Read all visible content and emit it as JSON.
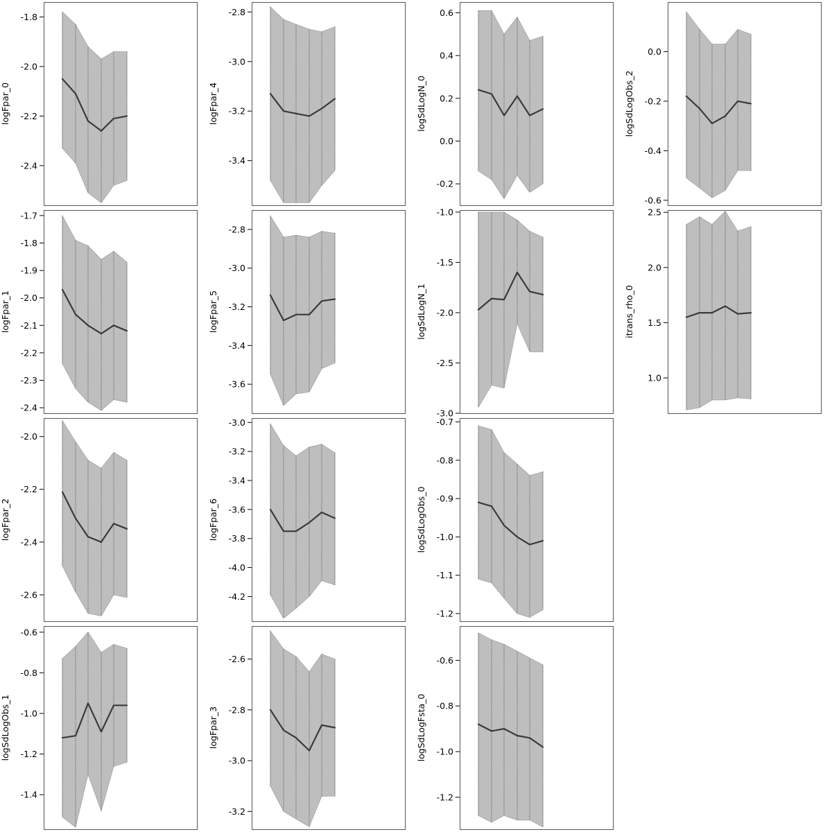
{
  "style": {
    "band_fill": "#bebebe",
    "band_edge": "#a3a3a3",
    "line_color": "#3a3a3a",
    "vline_color": "#5a5a5a",
    "frame_color": "#555555"
  },
  "chart_data": [
    {
      "type": "area",
      "ylabel": "logFpar_0",
      "ylim": [
        -2.56,
        -1.74
      ],
      "yticks": [
        -1.8,
        -2.0,
        -2.2,
        -2.4
      ],
      "ytick_labels": [
        "-1.8",
        "-2.0",
        "-2.2",
        "-2.4"
      ],
      "x": [
        1,
        2,
        3,
        4,
        5,
        6
      ],
      "mean": [
        -2.05,
        -2.11,
        -2.22,
        -2.26,
        -2.21,
        -2.2
      ],
      "upper": [
        -1.78,
        -1.83,
        -1.92,
        -1.97,
        -1.94,
        -1.94
      ],
      "lower": [
        -2.33,
        -2.39,
        -2.51,
        -2.55,
        -2.48,
        -2.46
      ]
    },
    {
      "type": "area",
      "ylabel": "logFpar_4",
      "ylim": [
        -3.58,
        -2.76
      ],
      "yticks": [
        -2.8,
        -3.0,
        -3.2,
        -3.4
      ],
      "ytick_labels": [
        "-2.8",
        "-3.0",
        "-3.2",
        "-3.4"
      ],
      "x": [
        1,
        2,
        3,
        4,
        5,
        6
      ],
      "mean": [
        -3.13,
        -3.2,
        -3.21,
        -3.22,
        -3.19,
        -3.15
      ],
      "upper": [
        -2.78,
        -2.83,
        -2.85,
        -2.87,
        -2.88,
        -2.86
      ],
      "lower": [
        -3.48,
        -3.57,
        -3.57,
        -3.57,
        -3.5,
        -3.44
      ]
    },
    {
      "type": "area",
      "ylabel": "logSdLogN_0",
      "ylim": [
        -0.3,
        0.65
      ],
      "yticks": [
        0.6,
        0.4,
        0.2,
        0.0,
        -0.2
      ],
      "ytick_labels": [
        "0.6",
        "0.4",
        "0.2",
        "0.0",
        "-0.2"
      ],
      "x": [
        1,
        2,
        3,
        4,
        5,
        6
      ],
      "mean": [
        0.24,
        0.22,
        0.12,
        0.21,
        0.12,
        0.15
      ],
      "upper": [
        0.61,
        0.61,
        0.5,
        0.58,
        0.47,
        0.49
      ],
      "lower": [
        -0.14,
        -0.18,
        -0.27,
        -0.16,
        -0.24,
        -0.2
      ]
    },
    {
      "type": "area",
      "ylabel": "logSdLogObs_2",
      "ylim": [
        -0.62,
        0.2
      ],
      "yticks": [
        0.0,
        -0.2,
        -0.4,
        -0.6
      ],
      "ytick_labels": [
        "0.0",
        "-0.2",
        "-0.4",
        "-0.6"
      ],
      "x": [
        1,
        2,
        3,
        4,
        5,
        6
      ],
      "mean": [
        -0.18,
        -0.23,
        -0.29,
        -0.26,
        -0.2,
        -0.21
      ],
      "upper": [
        0.16,
        0.09,
        0.03,
        0.03,
        0.09,
        0.07
      ],
      "lower": [
        -0.51,
        -0.55,
        -0.59,
        -0.56,
        -0.48,
        -0.48
      ]
    },
    {
      "type": "area",
      "ylabel": "logFpar_1",
      "ylim": [
        -2.42,
        -1.68
      ],
      "yticks": [
        -1.7,
        -1.8,
        -1.9,
        -2.0,
        -2.1,
        -2.2,
        -2.3,
        -2.4
      ],
      "ytick_labels": [
        "-1.7",
        "-1.8",
        "-1.9",
        "-2.0",
        "-2.1",
        "-2.2",
        "-2.3",
        "-2.4"
      ],
      "x": [
        1,
        2,
        3,
        4,
        5,
        6
      ],
      "mean": [
        -1.97,
        -2.06,
        -2.1,
        -2.13,
        -2.1,
        -2.12
      ],
      "upper": [
        -1.7,
        -1.79,
        -1.81,
        -1.86,
        -1.83,
        -1.87
      ],
      "lower": [
        -2.24,
        -2.33,
        -2.38,
        -2.41,
        -2.37,
        -2.38
      ]
    },
    {
      "type": "area",
      "ylabel": "logFpar_5",
      "ylim": [
        -3.75,
        -2.7
      ],
      "yticks": [
        -2.8,
        -3.0,
        -3.2,
        -3.4,
        -3.6
      ],
      "ytick_labels": [
        "-2.8",
        "-3.0",
        "-3.2",
        "-3.4",
        "-3.6"
      ],
      "x": [
        1,
        2,
        3,
        4,
        5,
        6
      ],
      "mean": [
        -3.14,
        -3.27,
        -3.24,
        -3.24,
        -3.17,
        -3.16
      ],
      "upper": [
        -2.73,
        -2.84,
        -2.83,
        -2.84,
        -2.81,
        -2.82
      ],
      "lower": [
        -3.55,
        -3.71,
        -3.65,
        -3.64,
        -3.52,
        -3.49
      ]
    },
    {
      "type": "area",
      "ylabel": "logSdLogN_1",
      "ylim": [
        -3.0,
        -0.98
      ],
      "yticks": [
        -1.0,
        -1.5,
        -2.0,
        -2.5,
        -3.0
      ],
      "ytick_labels": [
        "-1.0",
        "-1.5",
        "-2.0",
        "-2.5",
        "-3.0"
      ],
      "x": [
        1,
        2,
        3,
        4,
        5,
        6
      ],
      "mean": [
        -1.97,
        -1.86,
        -1.87,
        -1.6,
        -1.79,
        -1.82
      ],
      "upper": [
        -1.0,
        -1.0,
        -1.0,
        -1.08,
        -1.19,
        -1.25
      ],
      "lower": [
        -2.94,
        -2.72,
        -2.75,
        -2.11,
        -2.39,
        -2.39
      ]
    },
    {
      "type": "area",
      "ylabel": "itrans_rho_0",
      "ylim": [
        0.68,
        2.52
      ],
      "yticks": [
        2.5,
        2.0,
        1.5,
        1.0
      ],
      "ytick_labels": [
        "2.5",
        "2.0",
        "1.5",
        "1.0"
      ],
      "x": [
        1,
        2,
        3,
        4,
        5,
        6
      ],
      "mean": [
        1.55,
        1.59,
        1.59,
        1.65,
        1.58,
        1.59
      ],
      "upper": [
        2.39,
        2.46,
        2.39,
        2.51,
        2.33,
        2.37
      ],
      "lower": [
        0.71,
        0.73,
        0.8,
        0.8,
        0.82,
        0.81
      ]
    },
    {
      "type": "area",
      "ylabel": "logFpar_2",
      "ylim": [
        -2.7,
        -1.93
      ],
      "yticks": [
        -2.0,
        -2.2,
        -2.4,
        -2.6
      ],
      "ytick_labels": [
        "-2.0",
        "-2.2",
        "-2.4",
        "-2.6"
      ],
      "x": [
        1,
        2,
        3,
        4,
        5,
        6
      ],
      "mean": [
        -2.21,
        -2.31,
        -2.38,
        -2.4,
        -2.33,
        -2.35
      ],
      "upper": [
        -1.94,
        -2.02,
        -2.09,
        -2.12,
        -2.06,
        -2.09
      ],
      "lower": [
        -2.49,
        -2.59,
        -2.67,
        -2.68,
        -2.6,
        -2.61
      ]
    },
    {
      "type": "area",
      "ylabel": "logFpar_6",
      "ylim": [
        -4.37,
        -2.97
      ],
      "yticks": [
        -3.0,
        -3.2,
        -3.4,
        -3.6,
        -3.8,
        -4.0,
        -4.2
      ],
      "ytick_labels": [
        "-3.0",
        "-3.2",
        "-3.4",
        "-3.6",
        "-3.8",
        "-4.0",
        "-4.2"
      ],
      "x": [
        1,
        2,
        3,
        4,
        5,
        6
      ],
      "mean": [
        -3.6,
        -3.75,
        -3.75,
        -3.69,
        -3.62,
        -3.66
      ],
      "upper": [
        -3.01,
        -3.16,
        -3.23,
        -3.17,
        -3.15,
        -3.21
      ],
      "lower": [
        -4.19,
        -4.35,
        -4.28,
        -4.2,
        -4.09,
        -4.12
      ]
    },
    {
      "type": "area",
      "ylabel": "logSdLogObs_0",
      "ylim": [
        -1.22,
        -0.69
      ],
      "yticks": [
        -0.7,
        -0.8,
        -0.9,
        -1.0,
        -1.1,
        -1.2
      ],
      "ytick_labels": [
        "-0.7",
        "-0.8",
        "-0.9",
        "-1.0",
        "-1.1",
        "-1.2"
      ],
      "x": [
        1,
        2,
        3,
        4,
        5,
        6
      ],
      "mean": [
        -0.91,
        -0.92,
        -0.97,
        -1.0,
        -1.02,
        -1.01
      ],
      "upper": [
        -0.71,
        -0.72,
        -0.78,
        -0.81,
        -0.84,
        -0.83
      ],
      "lower": [
        -1.11,
        -1.12,
        -1.16,
        -1.2,
        -1.21,
        -1.19
      ]
    },
    {
      "type": "area",
      "ylabel": "logSdLogObs_1",
      "ylim": [
        -1.57,
        -0.57
      ],
      "yticks": [
        -0.6,
        -0.8,
        -1.0,
        -1.2,
        -1.4
      ],
      "ytick_labels": [
        "-0.6",
        "-0.8",
        "-1.0",
        "-1.2",
        "-1.4"
      ],
      "x": [
        1,
        2,
        3,
        4,
        5,
        6
      ],
      "mean": [
        -1.12,
        -1.11,
        -0.95,
        -1.09,
        -0.96,
        -0.96
      ],
      "upper": [
        -0.73,
        -0.67,
        -0.6,
        -0.7,
        -0.66,
        -0.68
      ],
      "lower": [
        -1.51,
        -1.56,
        -1.3,
        -1.48,
        -1.26,
        -1.24
      ]
    },
    {
      "type": "area",
      "ylabel": "logFpar_3",
      "ylim": [
        -3.27,
        -2.47
      ],
      "yticks": [
        -2.6,
        -2.8,
        -3.0,
        -3.2
      ],
      "ytick_labels": [
        "-2.6",
        "-2.8",
        "-3.0",
        "-3.2"
      ],
      "x": [
        1,
        2,
        3,
        4,
        5,
        6
      ],
      "mean": [
        -2.8,
        -2.88,
        -2.91,
        -2.96,
        -2.86,
        -2.87
      ],
      "upper": [
        -2.49,
        -2.56,
        -2.59,
        -2.65,
        -2.58,
        -2.6
      ],
      "lower": [
        -3.1,
        -3.2,
        -3.23,
        -3.26,
        -3.14,
        -3.14
      ]
    },
    {
      "type": "area",
      "ylabel": "logSdLogFsta_0",
      "ylim": [
        -1.34,
        -0.45
      ],
      "yticks": [
        -0.6,
        -0.8,
        -1.0,
        -1.2
      ],
      "ytick_labels": [
        "-0.6",
        "-0.8",
        "-1.0",
        "-1.2"
      ],
      "x": [
        1,
        2,
        3,
        4,
        5,
        6
      ],
      "mean": [
        -0.88,
        -0.91,
        -0.9,
        -0.93,
        -0.94,
        -0.98
      ],
      "upper": [
        -0.48,
        -0.51,
        -0.53,
        -0.56,
        -0.59,
        -0.62
      ],
      "lower": [
        -1.28,
        -1.31,
        -1.28,
        -1.3,
        -1.3,
        -1.33
      ]
    }
  ]
}
